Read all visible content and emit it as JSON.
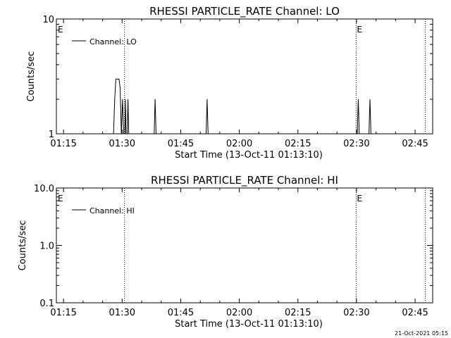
{
  "footer": {
    "timestamp": "21-Oct-2021 05:15"
  },
  "chart_data": [
    {
      "type": "line",
      "title": "RHESSI PARTICLE_RATE Channel: LO",
      "xlabel": "Start Time (13-Oct-11 01:13:10)",
      "ylabel": "Counts/sec",
      "x_unit": "minutes after 01:00 UT",
      "xlim": [
        73.17,
        169.5
      ],
      "ylim": [
        1,
        10
      ],
      "yscale": "log",
      "x_tick_labels": [
        "01:15",
        "01:30",
        "01:45",
        "02:00",
        "02:15",
        "02:30",
        "02:45"
      ],
      "x_tick_values": [
        75,
        90,
        105,
        120,
        135,
        150,
        165
      ],
      "y_tick_labels": [
        "1",
        "10"
      ],
      "y_tick_values": [
        1,
        10
      ],
      "legend": {
        "placement": "top-left",
        "entries": [
          "Channel: LO"
        ]
      },
      "eclipse_label": "E",
      "eclipse_markers": [
        90.6,
        149.9
      ],
      "night_markers": [
        90.6,
        149.9,
        167.6
      ],
      "series": [
        {
          "name": "Channel: LO",
          "x": [
            87.8,
            88.1,
            88.4,
            88.9,
            89.2,
            89.5,
            89.8,
            90.1,
            90.4,
            90.7,
            90.85,
            91.0,
            91.3,
            91.5,
            91.7,
            92.0,
            92.3,
            98.2,
            98.45,
            98.7,
            111.5,
            111.75,
            112.0,
            150.2,
            150.45,
            150.7,
            153.2,
            153.45,
            153.7
          ],
          "y": [
            1,
            2,
            3,
            3,
            3,
            2.5,
            1,
            2,
            1,
            1,
            2,
            1,
            1,
            2,
            1,
            1,
            1,
            1,
            2,
            1,
            1,
            2,
            1,
            1,
            2,
            1,
            1,
            2,
            1
          ]
        }
      ]
    },
    {
      "type": "line",
      "title": "RHESSI PARTICLE_RATE Channel: HI",
      "xlabel": "Start Time (13-Oct-11 01:13:10)",
      "ylabel": "Counts/sec",
      "x_unit": "minutes after 01:00 UT",
      "xlim": [
        73.17,
        169.5
      ],
      "ylim": [
        0.1,
        10
      ],
      "yscale": "log",
      "x_tick_labels": [
        "01:15",
        "01:30",
        "01:45",
        "02:00",
        "02:15",
        "02:30",
        "02:45"
      ],
      "x_tick_values": [
        75,
        90,
        105,
        120,
        135,
        150,
        165
      ],
      "y_tick_labels": [
        "0.1",
        "1.0",
        "10.0"
      ],
      "y_tick_values": [
        0.1,
        1,
        10
      ],
      "legend": {
        "placement": "top-left",
        "entries": [
          "Channel: HI"
        ]
      },
      "eclipse_label": "E",
      "eclipse_markers": [
        90.6,
        149.9
      ],
      "night_markers": [
        90.6,
        149.9,
        167.6
      ],
      "series": [
        {
          "name": "Channel: HI",
          "x": [],
          "y": []
        }
      ]
    }
  ]
}
